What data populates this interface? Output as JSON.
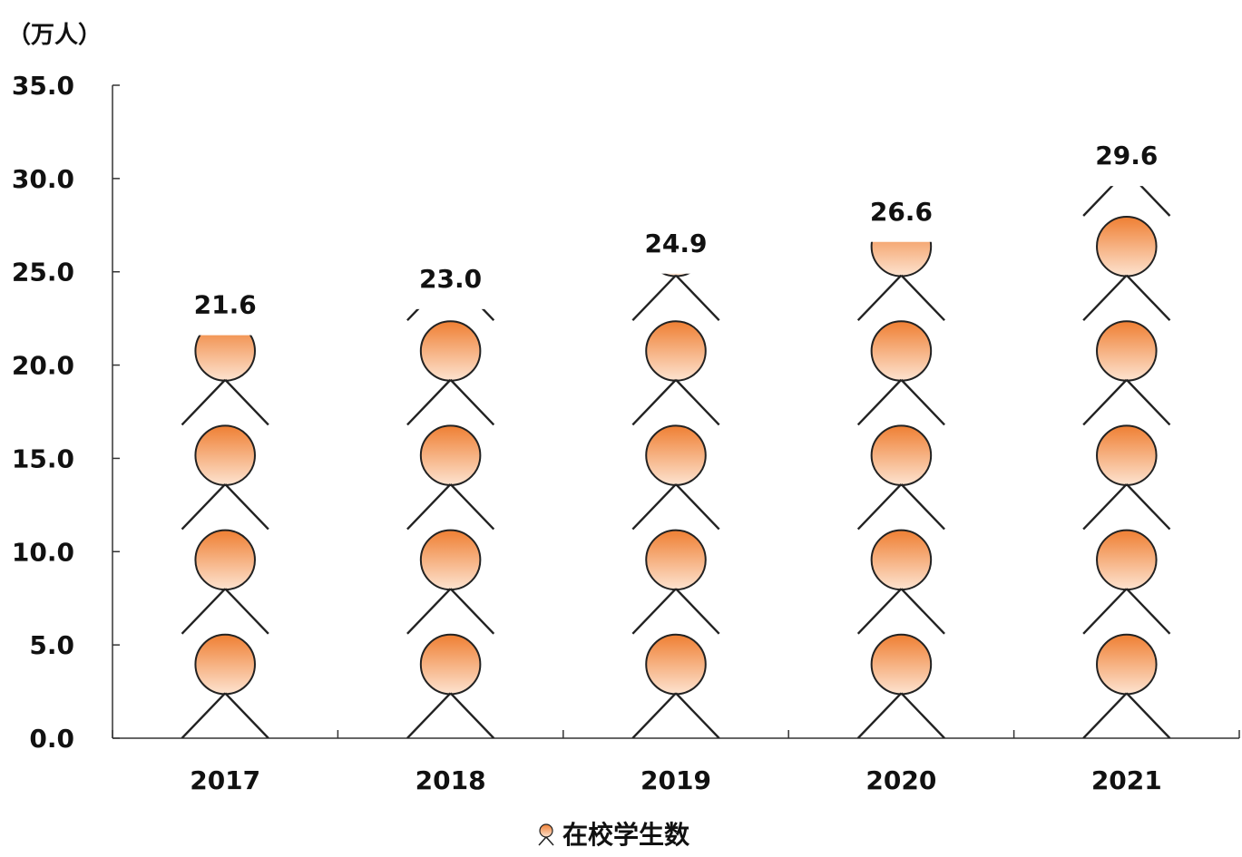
{
  "chart_data": {
    "type": "bar",
    "subtype": "pictograph",
    "unit_label": "（万人）",
    "categories": [
      "2017",
      "2018",
      "2019",
      "2020",
      "2021"
    ],
    "series": [
      {
        "name": "在校学生数",
        "values": [
          21.6,
          23.0,
          24.9,
          26.6,
          29.6
        ],
        "data_labels": [
          "21.6",
          "23.0",
          "24.9",
          "26.6",
          "29.6"
        ]
      }
    ],
    "ylim": [
      0,
      35
    ],
    "yticks": [
      "0.0",
      "5.0",
      "10.0",
      "15.0",
      "20.0",
      "25.0",
      "30.0",
      "35.0"
    ],
    "units_per_icon": 5.6,
    "legend_position": "bottom-center",
    "icon": "person-icon",
    "colors": {
      "icon_top": "#ef7f33",
      "icon_bottom": "#fde3d0",
      "outline": "#222222",
      "axis": "#333333"
    }
  }
}
